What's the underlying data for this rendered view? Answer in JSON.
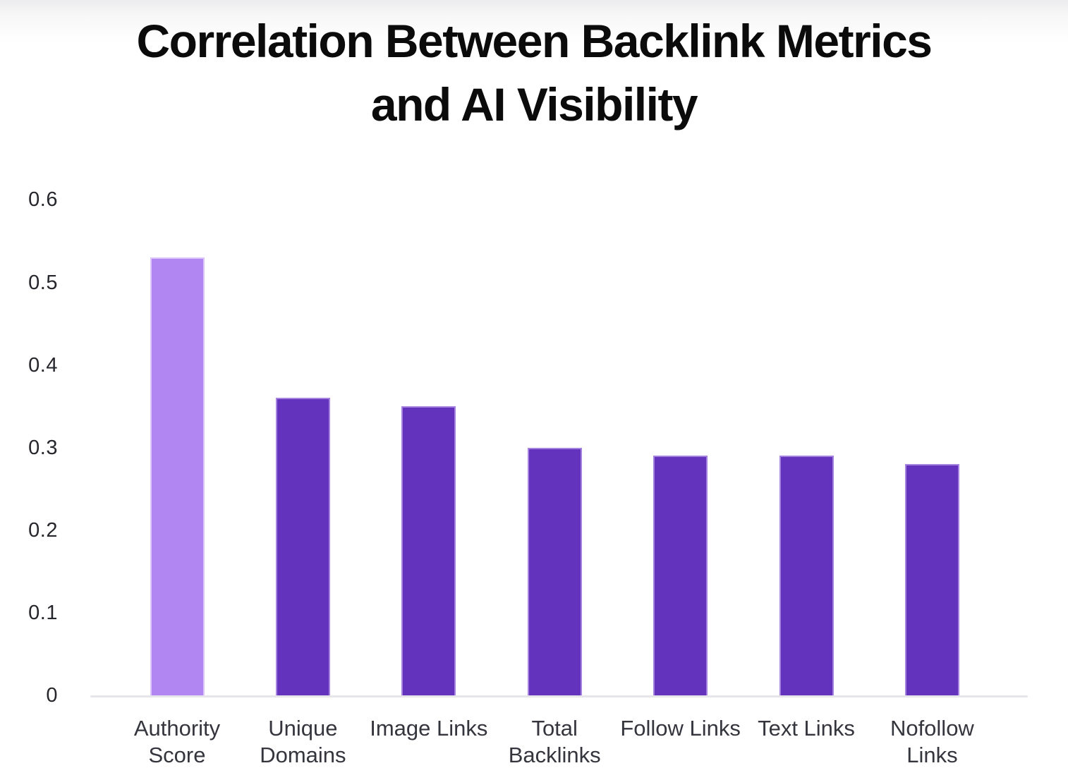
{
  "header": {
    "title_line1": "Correlation Between Backlink Metrics",
    "title_line2": "and AI Visibility"
  },
  "colors": {
    "highlight_bar": "#b286f2",
    "bar": "#6333bd",
    "bar_edge": "rgba(219,194,248,0.55)",
    "axis_line": "#e6e6ea",
    "tick_text": "#26272c",
    "label_text": "#34353d",
    "title_text": "#0b0b0c"
  },
  "chart_data": {
    "type": "bar",
    "title": "Correlation Between Backlink Metrics and AI Visibility",
    "categories": [
      "Authority Score",
      "Unique Domains",
      "Image Links",
      "Total Backlinks",
      "Follow Links",
      "Text Links",
      "Nofollow Links"
    ],
    "values": [
      0.53,
      0.36,
      0.35,
      0.3,
      0.29,
      0.29,
      0.28
    ],
    "highlight_index": 0,
    "highlight_category": "Authority Score",
    "xlabel": "",
    "ylabel": "",
    "ylim": [
      0,
      0.6
    ],
    "yticks": [
      0,
      0.1,
      0.2,
      0.3,
      0.4,
      0.5,
      0.6
    ],
    "ytick_labels": [
      "0",
      "0.1",
      "0.2",
      "0.3",
      "0.4",
      "0.5",
      "0.6"
    ],
    "grid": false,
    "legend": false
  }
}
